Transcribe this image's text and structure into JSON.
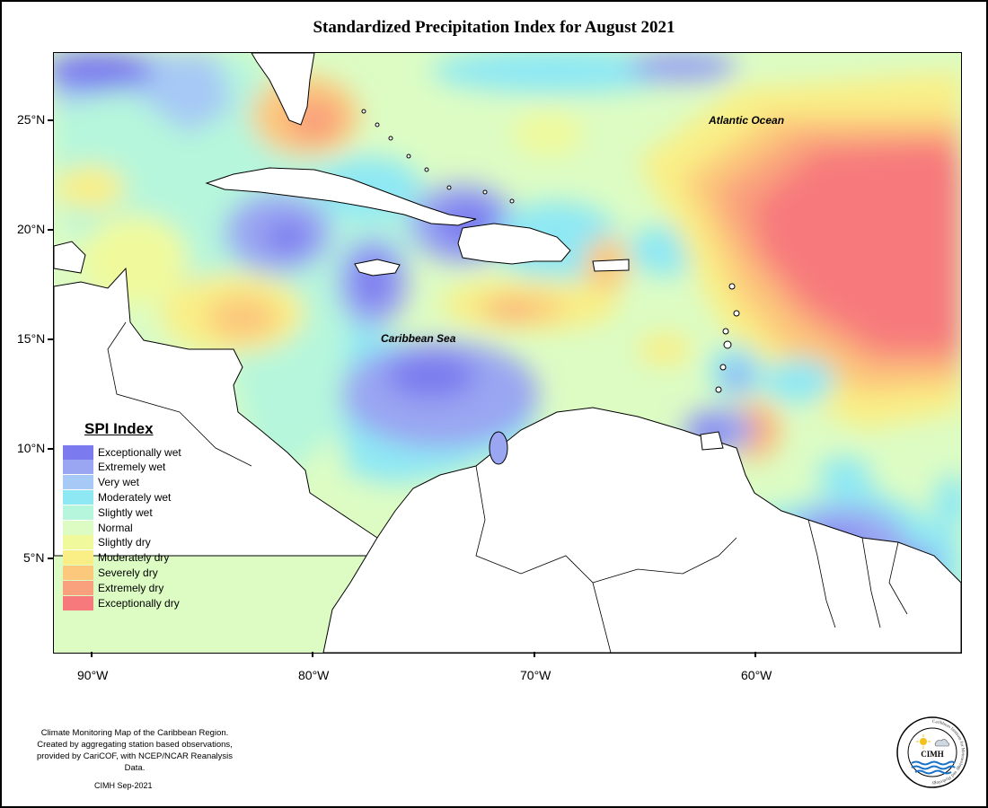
{
  "title": "Standardized Precipitation Index for August 2021",
  "latitude_labels": [
    "25°N",
    "20°N",
    "15°N",
    "10°N",
    "5°N"
  ],
  "longitude_labels": [
    "90°W",
    "80°W",
    "70°W",
    "60°W"
  ],
  "ocean_labels": {
    "atlantic": "Atlantic Ocean",
    "caribbean": "Caribbean Sea"
  },
  "legend": {
    "title": "SPI Index",
    "items": [
      {
        "label": "Exceptionally wet",
        "color": "#7b7bef"
      },
      {
        "label": "Extremely wet",
        "color": "#9aa6f2"
      },
      {
        "label": "Very wet",
        "color": "#a6c9f5"
      },
      {
        "label": "Moderately wet",
        "color": "#8ee8f4"
      },
      {
        "label": "Slightly wet",
        "color": "#b6f6dc"
      },
      {
        "label": "Normal",
        "color": "#dcfcc4"
      },
      {
        "label": "Slightly dry",
        "color": "#f0fa9c"
      },
      {
        "label": "Moderately dry",
        "color": "#f9ef86"
      },
      {
        "label": "Severely dry",
        "color": "#fcc87c"
      },
      {
        "label": "Extremely dry",
        "color": "#f9a07c"
      },
      {
        "label": "Exceptionally dry",
        "color": "#f7797c"
      }
    ]
  },
  "credits": {
    "line1": "Climate Monitoring Map of the Caribbean Region.",
    "line2": "Created by aggregating station based observations,",
    "line3": "provided by CariCOF, with NCEP/NCAR Reanalysis Data.",
    "date": "CIMH Sep-2021"
  },
  "logo": {
    "text": "CIMH",
    "ring_text": "Caribbean Institute for Meteorology and Hydrology"
  }
}
